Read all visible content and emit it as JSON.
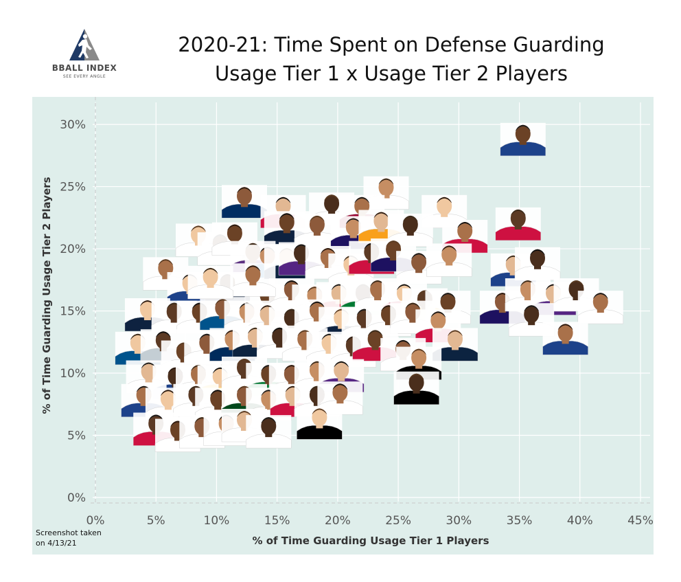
{
  "brand": {
    "name": "BBALL INDEX",
    "tagline": "SEE EVERY ANGLE"
  },
  "note": {
    "line1": "Screenshot taken",
    "line2": "on 4/13/21"
  },
  "colors": {
    "background": "#dfeeeb",
    "grid": "#ffffff",
    "logo_navy": "#1f3a66",
    "logo_gray": "#8a8a8a"
  },
  "chart_data": {
    "type": "scatter",
    "title": "2020-21: Time Spent on Defense Guarding",
    "subtitle": "Usage Tier 1 x Usage Tier 2 Players",
    "xlabel": "% of Time Guarding Usage Tier 1 Players",
    "ylabel": "% of Time Guarding Usage Tier 2 Players",
    "xlim": [
      0,
      45
    ],
    "ylim": [
      0,
      31
    ],
    "x_ticks": [
      0,
      5,
      10,
      15,
      20,
      25,
      30,
      35,
      40,
      45
    ],
    "x_tick_labels": [
      "0%",
      "5%",
      "10%",
      "15%",
      "20%",
      "25%",
      "30%",
      "35%",
      "40%",
      "45%"
    ],
    "y_ticks": [
      0,
      5,
      10,
      15,
      20,
      25,
      30
    ],
    "y_tick_labels": [
      "0%",
      "5%",
      "10%",
      "15%",
      "20%",
      "25%",
      "30%"
    ],
    "grid": true,
    "marker": "player-headshot",
    "points": [
      {
        "x": 35.3,
        "y": 28.8,
        "jersey": "#1d428a"
      },
      {
        "x": 12.3,
        "y": 23.8,
        "jersey": "#002d62"
      },
      {
        "x": 24.0,
        "y": 24.5,
        "jersey": "#ffffff"
      },
      {
        "x": 15.5,
        "y": 23.0,
        "jersey": "#ce1141"
      },
      {
        "x": 19.5,
        "y": 23.2,
        "jersey": "#ffffff"
      },
      {
        "x": 22.0,
        "y": 23.0,
        "jersey": "#98002e"
      },
      {
        "x": 28.8,
        "y": 23.0,
        "jersey": "#ffffff"
      },
      {
        "x": 34.9,
        "y": 22.0,
        "jersey": "#ce1141"
      },
      {
        "x": 15.8,
        "y": 21.7,
        "jersey": "#0e2240"
      },
      {
        "x": 18.3,
        "y": 21.5,
        "jersey": "#ffffff"
      },
      {
        "x": 21.3,
        "y": 21.3,
        "jersey": "#1d1160"
      },
      {
        "x": 23.6,
        "y": 21.8,
        "jersey": "#f9a01b"
      },
      {
        "x": 26.0,
        "y": 21.5,
        "jersey": "#ffffff"
      },
      {
        "x": 30.5,
        "y": 21.0,
        "jersey": "#ce1141"
      },
      {
        "x": 8.5,
        "y": 20.7,
        "jersey": "#ffffff"
      },
      {
        "x": 10.3,
        "y": 20.0,
        "jersey": "#ffffff"
      },
      {
        "x": 11.5,
        "y": 20.8,
        "jersey": "#ffffff"
      },
      {
        "x": 13.0,
        "y": 19.3,
        "jersey": "#5a2d81"
      },
      {
        "x": 14.2,
        "y": 19.0,
        "jersey": "#006bb6"
      },
      {
        "x": 15.8,
        "y": 18.9,
        "jersey": "#0c2340"
      },
      {
        "x": 17.0,
        "y": 19.2,
        "jersey": "#552583"
      },
      {
        "x": 19.2,
        "y": 18.9,
        "jersey": "#ffffff"
      },
      {
        "x": 21.1,
        "y": 18.3,
        "jersey": "#ffffff"
      },
      {
        "x": 22.8,
        "y": 19.3,
        "jersey": "#ce1141"
      },
      {
        "x": 24.6,
        "y": 19.5,
        "jersey": "#1d1160"
      },
      {
        "x": 26.7,
        "y": 18.5,
        "jersey": "#ffffff"
      },
      {
        "x": 29.2,
        "y": 19.1,
        "jersey": "#ffffff"
      },
      {
        "x": 34.5,
        "y": 18.3,
        "jersey": "#1d428a"
      },
      {
        "x": 36.5,
        "y": 18.8,
        "jersey": "#ffffff"
      },
      {
        "x": 5.8,
        "y": 18.0,
        "jersey": "#ffffff"
      },
      {
        "x": 7.8,
        "y": 16.8,
        "jersey": "#1d428a"
      },
      {
        "x": 10.9,
        "y": 16.8,
        "jersey": "#0e2240"
      },
      {
        "x": 14.2,
        "y": 15.8,
        "jersey": "#ce1141"
      },
      {
        "x": 16.2,
        "y": 16.3,
        "jersey": "#ffffff"
      },
      {
        "x": 18.1,
        "y": 15.8,
        "jersey": "#ffffff"
      },
      {
        "x": 20.1,
        "y": 16.0,
        "jersey": "#c8102e"
      },
      {
        "x": 22.1,
        "y": 16.0,
        "jersey": "#007a33"
      },
      {
        "x": 23.3,
        "y": 16.3,
        "jersey": "#ffffff"
      },
      {
        "x": 25.5,
        "y": 16.0,
        "jersey": "#ce1141"
      },
      {
        "x": 27.2,
        "y": 15.5,
        "jersey": "#fdb927"
      },
      {
        "x": 29.1,
        "y": 15.3,
        "jersey": "#ffffff"
      },
      {
        "x": 33.6,
        "y": 15.3,
        "jersey": "#1d1160"
      },
      {
        "x": 35.7,
        "y": 16.3,
        "jersey": "#ffffff"
      },
      {
        "x": 37.8,
        "y": 16.0,
        "jersey": "#552583"
      },
      {
        "x": 39.7,
        "y": 16.3,
        "jersey": "#ffffff"
      },
      {
        "x": 41.7,
        "y": 15.3,
        "jersey": "#ffffff"
      },
      {
        "x": 4.3,
        "y": 14.7,
        "jersey": "#0e2240"
      },
      {
        "x": 6.5,
        "y": 14.5,
        "jersey": "#ffffff"
      },
      {
        "x": 8.6,
        "y": 14.5,
        "jersey": "#ffffff"
      },
      {
        "x": 10.5,
        "y": 14.8,
        "jersey": "#00538c"
      },
      {
        "x": 12.5,
        "y": 14.5,
        "jersey": "#ffffff"
      },
      {
        "x": 14.2,
        "y": 14.3,
        "jersey": "#ffffff"
      },
      {
        "x": 16.2,
        "y": 14.0,
        "jersey": "#ffffff"
      },
      {
        "x": 18.3,
        "y": 14.6,
        "jersey": "#ffffff"
      },
      {
        "x": 20.3,
        "y": 14.0,
        "jersey": "#0e2240"
      },
      {
        "x": 22.2,
        "y": 14.0,
        "jersey": "#ffffff"
      },
      {
        "x": 24.2,
        "y": 14.3,
        "jersey": "#ffffff"
      },
      {
        "x": 26.2,
        "y": 14.5,
        "jersey": "#ffffff"
      },
      {
        "x": 28.3,
        "y": 13.8,
        "jersey": "#ce1141"
      },
      {
        "x": 29.7,
        "y": 12.3,
        "jersey": "#0c2340"
      },
      {
        "x": 36.0,
        "y": 14.3,
        "jersey": "#ffffff"
      },
      {
        "x": 38.8,
        "y": 12.8,
        "jersey": "#1d428a"
      },
      {
        "x": 3.5,
        "y": 12.0,
        "jersey": "#00538c"
      },
      {
        "x": 5.6,
        "y": 12.2,
        "jersey": "#c4ced4"
      },
      {
        "x": 7.3,
        "y": 11.3,
        "jersey": "#ffffff"
      },
      {
        "x": 9.2,
        "y": 12.0,
        "jersey": "#ffffff"
      },
      {
        "x": 11.3,
        "y": 12.3,
        "jersey": "#002b5c"
      },
      {
        "x": 13.2,
        "y": 12.5,
        "jersey": "#0c2340"
      },
      {
        "x": 15.2,
        "y": 12.5,
        "jersey": "#ffffff"
      },
      {
        "x": 17.3,
        "y": 12.3,
        "jersey": "#ffffff"
      },
      {
        "x": 19.3,
        "y": 12.0,
        "jersey": "#ffffff"
      },
      {
        "x": 21.3,
        "y": 11.8,
        "jersey": "#ffffff"
      },
      {
        "x": 23.1,
        "y": 12.3,
        "jersey": "#ce1141"
      },
      {
        "x": 25.4,
        "y": 11.5,
        "jersey": "#ffffff"
      },
      {
        "x": 26.7,
        "y": 10.8,
        "jersey": "#000000"
      },
      {
        "x": 4.4,
        "y": 9.7,
        "jersey": "#ffffff"
      },
      {
        "x": 6.6,
        "y": 9.3,
        "jersey": "#1d428a"
      },
      {
        "x": 8.5,
        "y": 9.5,
        "jersey": "#ffffff"
      },
      {
        "x": 10.3,
        "y": 9.3,
        "jersey": "#ffc72c"
      },
      {
        "x": 12.3,
        "y": 10.0,
        "jersey": "#ffffff"
      },
      {
        "x": 14.3,
        "y": 9.5,
        "jersey": "#007a33"
      },
      {
        "x": 16.2,
        "y": 9.5,
        "jersey": "#ffffff"
      },
      {
        "x": 18.3,
        "y": 9.8,
        "jersey": "#ffffff"
      },
      {
        "x": 20.3,
        "y": 9.8,
        "jersey": "#552583"
      },
      {
        "x": 26.5,
        "y": 8.8,
        "jersey": "#000000"
      },
      {
        "x": 4.0,
        "y": 7.8,
        "jersey": "#1d428a"
      },
      {
        "x": 6.0,
        "y": 7.5,
        "jersey": "#ffffff"
      },
      {
        "x": 8.3,
        "y": 7.8,
        "jersey": "#ffffff"
      },
      {
        "x": 10.1,
        "y": 7.5,
        "jersey": "#ffffff"
      },
      {
        "x": 12.3,
        "y": 7.8,
        "jersey": "#00471b"
      },
      {
        "x": 14.3,
        "y": 7.5,
        "jersey": "#ffffff"
      },
      {
        "x": 16.3,
        "y": 7.8,
        "jersey": "#ce1141"
      },
      {
        "x": 18.3,
        "y": 7.8,
        "jersey": "#ffffff"
      },
      {
        "x": 20.2,
        "y": 8.0,
        "jersey": "#ffffff"
      },
      {
        "x": 18.5,
        "y": 6.0,
        "jersey": "#000000"
      },
      {
        "x": 5.0,
        "y": 5.5,
        "jersey": "#ce1141"
      },
      {
        "x": 6.8,
        "y": 5.0,
        "jersey": "#ffffff"
      },
      {
        "x": 8.8,
        "y": 5.3,
        "jersey": "#ffffff"
      },
      {
        "x": 10.8,
        "y": 5.5,
        "jersey": "#ffffff"
      },
      {
        "x": 12.3,
        "y": 5.8,
        "jersey": "#ffffff"
      },
      {
        "x": 14.3,
        "y": 5.3,
        "jersey": "#ffffff"
      },
      {
        "x": 13.0,
        "y": 17.5,
        "jersey": "#ffffff"
      },
      {
        "x": 9.5,
        "y": 17.3,
        "jersey": "#ffffff"
      }
    ]
  }
}
